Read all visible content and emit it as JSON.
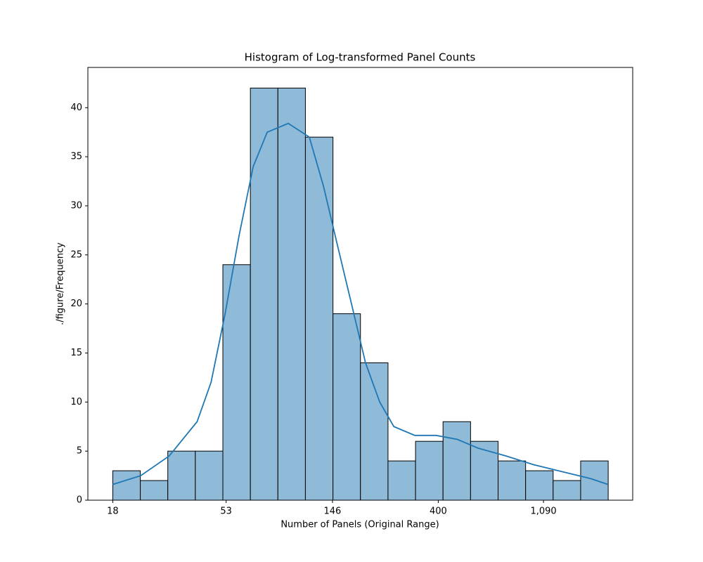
{
  "chart_data": {
    "type": "histogram",
    "title": "Histogram of Log-transformed Panel Counts",
    "xlabel": "Number of Panels (Original Range)",
    "ylabel": "./figure/Frequency",
    "xscale": "log",
    "bins": [
      18,
      23.4,
      30.41,
      39.53,
      51.38,
      66.79,
      86.81,
      112.8,
      146.7,
      190.6,
      247.8,
      322.1,
      418.6,
      544.1,
      707.3,
      919.3,
      1195,
      1553,
      2019
    ],
    "values": [
      3,
      2,
      5,
      5,
      24,
      42,
      42,
      37,
      19,
      14,
      4,
      6,
      8,
      6,
      4,
      3,
      2,
      4
    ],
    "color": "#8fbbd9",
    "edgecolor": "#000000",
    "kde": {
      "color": "#1f77b4",
      "x": [
        18,
        23.5,
        30.8,
        40.2,
        45.9,
        52.5,
        60.0,
        68.6,
        78.4,
        95.8,
        117.1,
        134,
        153,
        175,
        200,
        229,
        262,
        320,
        392,
        479,
        585,
        764,
        998,
        1305,
        1706,
        2016
      ],
      "y": [
        1.6,
        2.5,
        4.5,
        8,
        12,
        19,
        27,
        34,
        37.5,
        38.4,
        37,
        32,
        26,
        20,
        14,
        10,
        7.5,
        6.6,
        6.6,
        6.2,
        5.3,
        4.5,
        3.6,
        2.9,
        2.2,
        1.6
      ]
    },
    "xlim": [
      14.2,
      2550
    ],
    "xticks": [
      18,
      53,
      146,
      400,
      {
        "value": 1090,
        "label": "1,090"
      }
    ],
    "ylim": [
      0,
      44.1
    ],
    "yticks": [
      0,
      5,
      10,
      15,
      20,
      25,
      30,
      35,
      40
    ]
  }
}
